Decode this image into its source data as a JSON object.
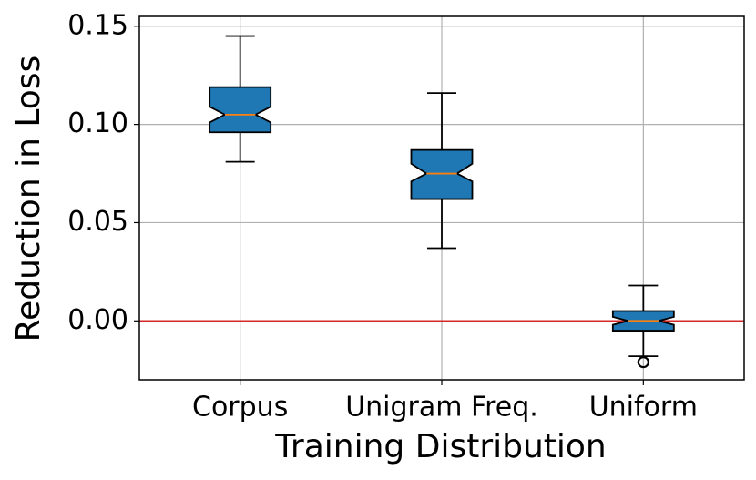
{
  "chart_data": {
    "type": "box",
    "xlabel": "Training Distribution",
    "ylabel": "Reduction in Loss",
    "categories": [
      "Corpus",
      "Unigram Freq.",
      "Uniform"
    ],
    "boxes": [
      {
        "whislo": 0.081,
        "q1": 0.096,
        "notch_lo": 0.101,
        "med": 0.105,
        "notch_hi": 0.109,
        "q3": 0.119,
        "whishi": 0.145,
        "fliers": []
      },
      {
        "whislo": 0.037,
        "q1": 0.062,
        "notch_lo": 0.071,
        "med": 0.075,
        "notch_hi": 0.08,
        "q3": 0.087,
        "whishi": 0.116,
        "fliers": []
      },
      {
        "whislo": -0.018,
        "q1": -0.005,
        "notch_lo": -0.002,
        "med": 0.0,
        "notch_hi": 0.002,
        "q3": 0.005,
        "whishi": 0.018,
        "fliers": [
          -0.021
        ]
      }
    ],
    "box_color": "#1f77b4",
    "median_color": "#ff7f0e",
    "hline": 0,
    "hline_color": "#d62728",
    "ylim": [
      -0.03,
      0.155
    ],
    "yticks": [
      {
        "value": 0,
        "label": "0.00"
      },
      {
        "value": 0.05,
        "label": "0.05"
      },
      {
        "value": 0.1,
        "label": "0.10"
      },
      {
        "value": 0.15,
        "label": "0.15"
      }
    ],
    "grid": true,
    "notch": true
  }
}
